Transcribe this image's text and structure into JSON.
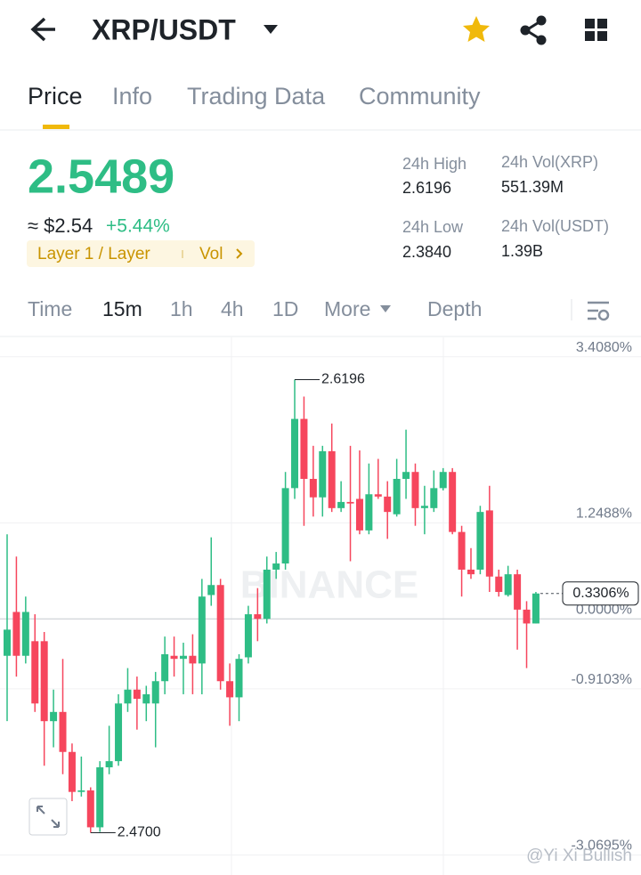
{
  "header": {
    "title": "XRP/USDT"
  },
  "tabs": [
    "Price",
    "Info",
    "Trading Data",
    "Community"
  ],
  "ticker": {
    "price": "2.5489",
    "fiat": "≈ $2.54",
    "change": "+5.44%",
    "tag": "Layer 1 / Layer",
    "tag_action": "Vol",
    "stats": [
      {
        "label": "24h High",
        "value": "2.6196"
      },
      {
        "label": "24h Vol(XRP)",
        "value": "551.39M"
      },
      {
        "label": "24h Low",
        "value": "2.3840"
      },
      {
        "label": "24h Vol(USDT)",
        "value": "1.39B"
      }
    ]
  },
  "intervals": [
    "Time",
    "15m",
    "1h",
    "4h",
    "1D",
    "More",
    "Depth"
  ],
  "chart": {
    "type": "candlestick",
    "watermark": "BINANCE",
    "ylim": [
      -3.33,
      3.66
    ],
    "yticks": [
      {
        "value": 3.408,
        "label": "3.4080%"
      },
      {
        "value": 1.2488,
        "label": "1.2488%"
      },
      {
        "value": 0,
        "label": "0.0000%"
      },
      {
        "value": -0.9103,
        "label": "-0.9103%"
      },
      {
        "value": -3.0695,
        "label": "-3.0695%"
      }
    ],
    "current": {
      "value": 0.3306,
      "label": "0.3306%"
    },
    "high_marker": "2.6196",
    "low_marker": "2.4700",
    "up_color": "#2ebd85",
    "down_color": "#f6465d",
    "candles": [
      {
        "open": -0.48,
        "high": 1.1,
        "low": -1.33,
        "close": -0.14
      },
      {
        "open": 0.09,
        "high": 0.81,
        "low": -0.75,
        "close": -0.48
      },
      {
        "open": -0.48,
        "high": 0.29,
        "low": -0.58,
        "close": 0.09
      },
      {
        "open": -0.29,
        "high": 0.06,
        "low": -1.21,
        "close": -1.1
      },
      {
        "open": -0.29,
        "high": -0.17,
        "low": -1.91,
        "close": -1.33
      },
      {
        "open": -1.33,
        "high": -0.92,
        "low": -1.67,
        "close": -1.21
      },
      {
        "open": -1.21,
        "high": -0.52,
        "low": -2.02,
        "close": -1.73
      },
      {
        "open": -1.73,
        "high": -1.62,
        "low": -2.37,
        "close": -2.25
      },
      {
        "open": -2.25,
        "high": -1.79,
        "low": -2.31,
        "close": -2.23
      },
      {
        "open": -2.23,
        "high": -2.19,
        "low": -2.78,
        "close": -2.71
      },
      {
        "open": -2.71,
        "high": -1.85,
        "low": -2.77,
        "close": -1.93
      },
      {
        "open": -1.93,
        "high": -1.39,
        "low": -2.02,
        "close": -1.85
      },
      {
        "open": -1.85,
        "high": -0.98,
        "low": -1.91,
        "close": -1.1
      },
      {
        "open": -1.1,
        "high": -0.64,
        "low": -1.21,
        "close": -0.92
      },
      {
        "open": -0.92,
        "high": -0.75,
        "low": -1.44,
        "close": -1.04
      },
      {
        "open": -1.1,
        "high": -0.87,
        "low": -1.33,
        "close": -0.98
      },
      {
        "open": -1.1,
        "high": -0.69,
        "low": -1.67,
        "close": -0.81
      },
      {
        "open": -0.81,
        "high": -0.23,
        "low": -0.98,
        "close": -0.46
      },
      {
        "open": -0.48,
        "high": -0.23,
        "low": -0.75,
        "close": -0.52
      },
      {
        "open": -0.52,
        "high": -0.31,
        "low": -0.98,
        "close": -0.48
      },
      {
        "open": -0.48,
        "high": -0.2,
        "low": -0.98,
        "close": -0.58
      },
      {
        "open": -0.58,
        "high": 0.52,
        "low": -0.98,
        "close": 0.29
      },
      {
        "open": 0.31,
        "high": 1.06,
        "low": 0.17,
        "close": 0.44
      },
      {
        "open": 0.44,
        "high": 0.52,
        "low": -0.92,
        "close": -0.81
      },
      {
        "open": -0.81,
        "high": -0.58,
        "low": -1.39,
        "close": -1.02
      },
      {
        "open": -1.02,
        "high": -0.46,
        "low": -1.33,
        "close": -0.52
      },
      {
        "open": -0.5,
        "high": 0.17,
        "low": -0.58,
        "close": 0.06
      },
      {
        "open": 0.06,
        "high": 0.4,
        "low": -0.29,
        "close": 0.0
      },
      {
        "open": 0.0,
        "high": 0.81,
        "low": -0.06,
        "close": 0.64
      },
      {
        "open": 0.64,
        "high": 0.87,
        "low": 0.52,
        "close": 0.72
      },
      {
        "open": 0.72,
        "high": 1.91,
        "low": 0.64,
        "close": 1.7
      },
      {
        "open": 1.7,
        "high": 3.11,
        "low": 1.56,
        "close": 2.6
      },
      {
        "open": 2.6,
        "high": 2.89,
        "low": 1.21,
        "close": 1.82
      },
      {
        "open": 1.82,
        "high": 2.25,
        "low": 1.33,
        "close": 1.58
      },
      {
        "open": 1.58,
        "high": 2.25,
        "low": 1.33,
        "close": 2.18
      },
      {
        "open": 2.18,
        "high": 2.54,
        "low": 1.39,
        "close": 1.44
      },
      {
        "open": 1.44,
        "high": 1.79,
        "low": 1.39,
        "close": 1.52
      },
      {
        "open": 1.52,
        "high": 2.25,
        "low": 0.75,
        "close": 1.5
      },
      {
        "open": 1.56,
        "high": 2.19,
        "low": 1.1,
        "close": 1.15
      },
      {
        "open": 1.15,
        "high": 2.02,
        "low": 1.1,
        "close": 1.62
      },
      {
        "open": 1.62,
        "high": 2.08,
        "low": 1.56,
        "close": 1.59
      },
      {
        "open": 1.59,
        "high": 1.79,
        "low": 1.04,
        "close": 1.39
      },
      {
        "open": 1.36,
        "high": 2.08,
        "low": 1.33,
        "close": 1.82
      },
      {
        "open": 1.82,
        "high": 2.46,
        "low": 1.56,
        "close": 1.91
      },
      {
        "open": 1.91,
        "high": 2.02,
        "low": 1.21,
        "close": 1.44
      },
      {
        "open": 1.44,
        "high": 1.73,
        "low": 1.1,
        "close": 1.47
      },
      {
        "open": 1.44,
        "high": 1.93,
        "low": 1.39,
        "close": 1.7
      },
      {
        "open": 1.7,
        "high": 1.96,
        "low": 1.67,
        "close": 1.91
      },
      {
        "open": 1.91,
        "high": 1.96,
        "low": 1.1,
        "close": 1.13
      },
      {
        "open": 1.13,
        "high": 1.21,
        "low": 0.29,
        "close": 0.64
      },
      {
        "open": 0.64,
        "high": 0.92,
        "low": 0.52,
        "close": 0.58
      },
      {
        "open": 0.64,
        "high": 1.47,
        "low": 0.58,
        "close": 1.39
      },
      {
        "open": 1.41,
        "high": 1.73,
        "low": 0.35,
        "close": 0.55
      },
      {
        "open": 0.55,
        "high": 0.64,
        "low": 0.29,
        "close": 0.35
      },
      {
        "open": 0.31,
        "high": 0.69,
        "low": 0.29,
        "close": 0.58
      },
      {
        "open": 0.58,
        "high": 0.64,
        "low": -0.4,
        "close": 0.12
      },
      {
        "open": 0.12,
        "high": 0.23,
        "low": -0.64,
        "close": -0.06
      },
      {
        "open": -0.06,
        "high": 0.35,
        "low": -0.06,
        "close": 0.33
      }
    ]
  },
  "watermark": "@Yi Xi Bullish"
}
